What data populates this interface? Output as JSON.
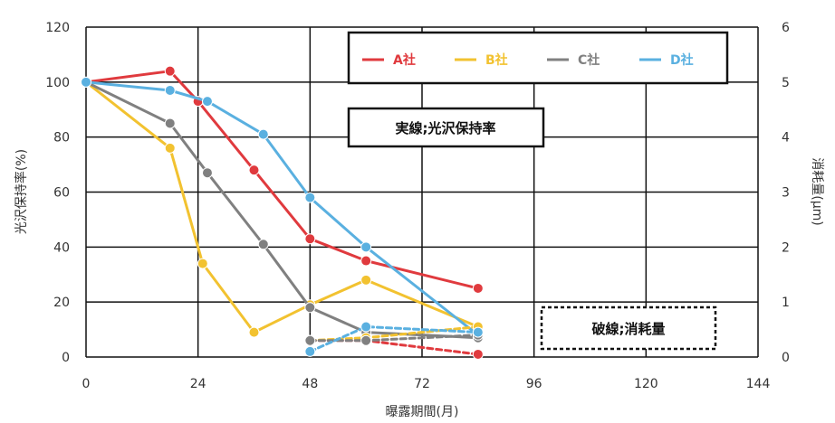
{
  "chart_data": {
    "type": "line",
    "xlabel": "曝露期間(月)",
    "ylabel": "光沢保持率(%)",
    "y2label": "消耗量(μm)",
    "xticks": [
      0,
      24,
      48,
      72,
      96,
      120,
      144
    ],
    "yticks": [
      0,
      20,
      40,
      60,
      80,
      100,
      120
    ],
    "y2ticks": [
      0,
      1,
      2,
      3,
      4,
      5,
      6
    ],
    "xlim": [
      0,
      144
    ],
    "ylim": [
      0,
      120
    ],
    "y2lim": [
      0,
      6
    ],
    "grid": true,
    "legend_position": "top-right",
    "annotations": [
      {
        "id": "solid",
        "text": "実線;光沢保持率"
      },
      {
        "id": "dashed",
        "text": "破線;消耗量"
      }
    ],
    "series": [
      {
        "name": "A社",
        "color": "#e03a3e",
        "axis": "left",
        "style": "solid",
        "x": [
          0,
          18,
          24,
          36,
          48,
          60,
          84
        ],
        "y": [
          100,
          104,
          93,
          68,
          43,
          35,
          25
        ]
      },
      {
        "name": "B社",
        "color": "#f2c230",
        "axis": "left",
        "style": "solid",
        "x": [
          0,
          18,
          25,
          36,
          48,
          60,
          84
        ],
        "y": [
          100,
          76,
          34,
          9,
          19,
          28,
          11
        ]
      },
      {
        "name": "C社",
        "color": "#808080",
        "axis": "left",
        "style": "solid",
        "x": [
          0,
          18,
          26,
          38,
          48,
          60,
          84
        ],
        "y": [
          100,
          85,
          67,
          41,
          18,
          9,
          7
        ]
      },
      {
        "name": "D社",
        "color": "#5ab0e0",
        "axis": "left",
        "style": "solid",
        "x": [
          0,
          18,
          26,
          38,
          48,
          60,
          84
        ],
        "y": [
          100,
          97,
          93,
          81,
          58,
          40,
          8
        ]
      },
      {
        "name": "A社",
        "color": "#e03a3e",
        "axis": "right",
        "style": "dashed",
        "x": [
          48,
          60,
          84
        ],
        "y": [
          0.3,
          0.3,
          0.05
        ]
      },
      {
        "name": "B社",
        "color": "#f2c230",
        "axis": "right",
        "style": "dashed",
        "x": [
          48,
          60,
          84
        ],
        "y": [
          0.3,
          0.35,
          0.55
        ]
      },
      {
        "name": "C社",
        "color": "#808080",
        "axis": "right",
        "style": "dashed",
        "x": [
          48,
          60,
          84
        ],
        "y": [
          0.3,
          0.3,
          0.4
        ]
      },
      {
        "name": "D社",
        "color": "#5ab0e0",
        "axis": "right",
        "style": "dashed",
        "x": [
          48,
          60,
          84
        ],
        "y": [
          0.1,
          0.55,
          0.45
        ]
      }
    ]
  }
}
